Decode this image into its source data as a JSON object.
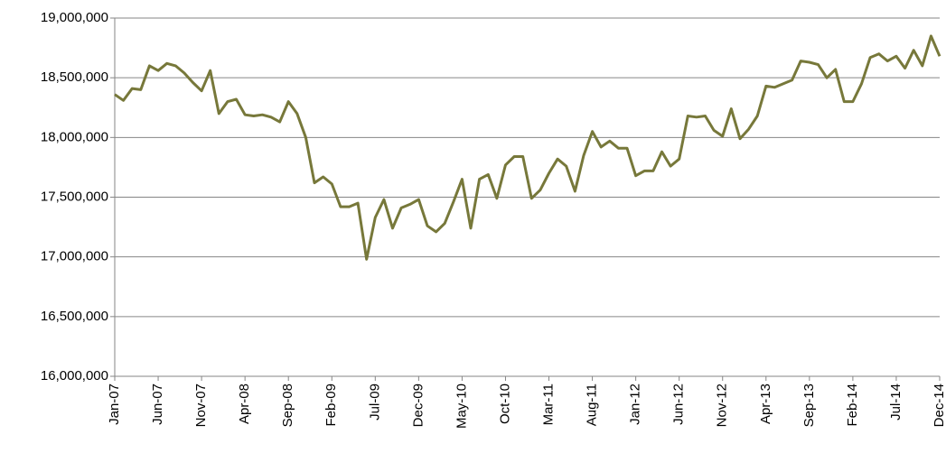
{
  "chart_data": {
    "type": "line",
    "categories": [
      "Jan-07",
      null,
      null,
      null,
      null,
      "Jun-07",
      null,
      null,
      null,
      null,
      "Nov-07",
      null,
      null,
      null,
      null,
      "Apr-08",
      null,
      null,
      null,
      null,
      "Sep-08",
      null,
      null,
      null,
      null,
      "Feb-09",
      null,
      null,
      null,
      null,
      "Jul-09",
      null,
      null,
      null,
      null,
      "Dec-09",
      null,
      null,
      null,
      null,
      "May-10",
      null,
      null,
      null,
      null,
      "Oct-10",
      null,
      null,
      null,
      null,
      "Mar-11",
      null,
      null,
      null,
      null,
      "Aug-11",
      null,
      null,
      null,
      null,
      "Jan-12",
      null,
      null,
      null,
      null,
      "Jun-12",
      null,
      null,
      null,
      null,
      "Nov-12",
      null,
      null,
      null,
      null,
      "Apr-13",
      null,
      null,
      null,
      null,
      "Sep-13",
      null,
      null,
      null,
      null,
      "Feb-14",
      null,
      null,
      null,
      null,
      "Jul-14",
      null,
      null,
      null,
      null,
      "Dec-14"
    ],
    "series": [
      {
        "color": "#77783a",
        "values": [
          18360000,
          18310000,
          18410000,
          18400000,
          18600000,
          18560000,
          18620000,
          18600000,
          18540000,
          18460000,
          18390000,
          18560000,
          18200000,
          18300000,
          18320000,
          18190000,
          18180000,
          18190000,
          18170000,
          18130000,
          18300000,
          18200000,
          18000000,
          17620000,
          17670000,
          17610000,
          17420000,
          17420000,
          17450000,
          16980000,
          17330000,
          17480000,
          17240000,
          17410000,
          17440000,
          17480000,
          17260000,
          17210000,
          17280000,
          17460000,
          17650000,
          17240000,
          17650000,
          17690000,
          17490000,
          17770000,
          17840000,
          17840000,
          17490000,
          17560000,
          17700000,
          17820000,
          17760000,
          17550000,
          17850000,
          18050000,
          17920000,
          17970000,
          17910000,
          17910000,
          17680000,
          17720000,
          17720000,
          17880000,
          17760000,
          17820000,
          18180000,
          18170000,
          18180000,
          18060000,
          18010000,
          18240000,
          17990000,
          18070000,
          18180000,
          18430000,
          18420000,
          18450000,
          18480000,
          18640000,
          18630000,
          18610000,
          18500000,
          18570000,
          18300000,
          18300000,
          18450000,
          18670000,
          18700000,
          18640000,
          18680000,
          18580000,
          18730000,
          18600000,
          18850000,
          18680000
        ]
      }
    ],
    "ylim": [
      16000000,
      19000000
    ],
    "yticks": [
      {
        "value": 16000000,
        "label": "16,000,000"
      },
      {
        "value": 16500000,
        "label": "16,500,000"
      },
      {
        "value": 17000000,
        "label": "17,000,000"
      },
      {
        "value": 17500000,
        "label": "17,500,000"
      },
      {
        "value": 18000000,
        "label": "18,000,000"
      },
      {
        "value": 18500000,
        "label": "18,500,000"
      },
      {
        "value": 19000000,
        "label": "19,000,000"
      }
    ],
    "grid": true
  }
}
